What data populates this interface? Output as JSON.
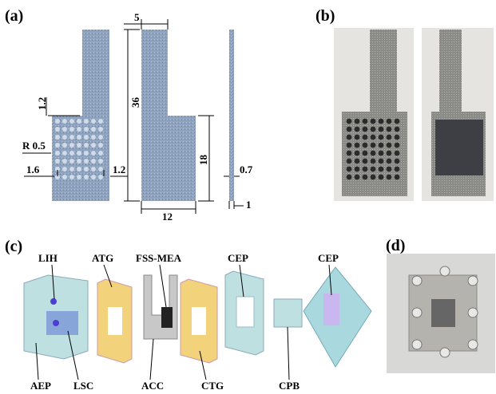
{
  "panels": {
    "a": {
      "label": "(a)",
      "dims": {
        "width_top": "5",
        "height_total": "36",
        "spacing": "1.2",
        "radius": "R 0.5",
        "margin_left": "1.6",
        "margin_right": "1.2",
        "height_base": "18",
        "thickness": "0.7",
        "width_base": "12",
        "offset": "1"
      }
    },
    "b": {
      "label": "(b)"
    },
    "c": {
      "label": "(c)",
      "parts": {
        "lih": "LIH",
        "atg": "ATG",
        "fss": "FSS-MEA",
        "cep1": "CEP",
        "cep2": "CEP",
        "aep": "AEP",
        "lsc": "LSC",
        "acc": "ACC",
        "ctg": "CTG",
        "cpb": "CPB"
      }
    },
    "d": {
      "label": "(d)"
    }
  }
}
